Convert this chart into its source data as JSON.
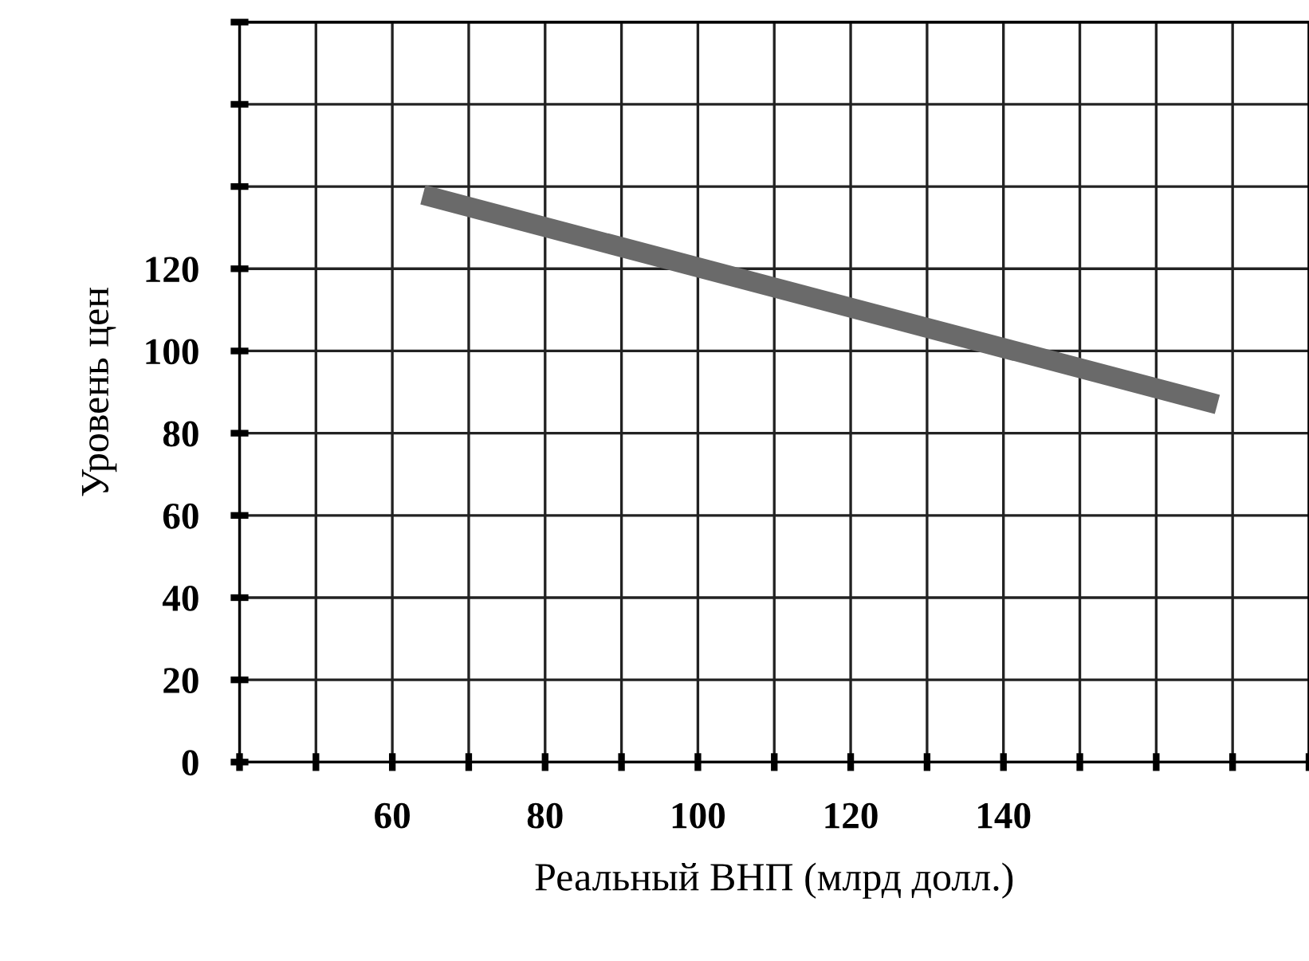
{
  "chart_data": {
    "type": "line",
    "xlabel": "Реальный ВНП (млрд долл.)",
    "ylabel": "Уровень цен",
    "series": [
      {
        "color": "#6a6a6a",
        "x": [
          64,
          168
        ],
        "values": [
          138,
          87
        ]
      }
    ],
    "xlim": [
      40,
      180
    ],
    "xticks": [
      {
        "value": 40,
        "label": null
      },
      {
        "value": 50,
        "label": null
      },
      60,
      {
        "value": 70,
        "label": null
      },
      80,
      {
        "value": 90,
        "label": null
      },
      100,
      {
        "value": 110,
        "label": null
      },
      120,
      {
        "value": 130,
        "label": null
      },
      140,
      {
        "value": 150,
        "label": null
      },
      {
        "value": 160,
        "label": null
      },
      {
        "value": 170,
        "label": null
      },
      {
        "value": 180,
        "label": null
      }
    ],
    "ylim": [
      0,
      180
    ],
    "yticks": [
      0,
      20,
      40,
      60,
      80,
      100,
      120,
      {
        "value": 140,
        "label": null
      },
      {
        "value": 160,
        "label": null
      },
      {
        "value": 180,
        "label": null
      }
    ],
    "grid": true,
    "line_style": "solid",
    "marker": "none"
  }
}
